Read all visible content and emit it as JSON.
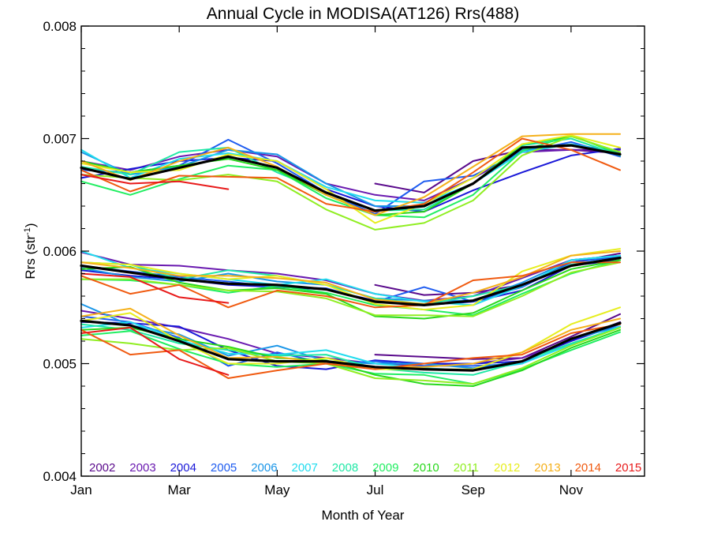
{
  "chart_data": {
    "type": "line",
    "title": "Annual Cycle in MODISA(AT126) Rrs(488)",
    "xlabel": "Month of Year",
    "ylabel_main": "Rrs (str",
    "ylabel_sup": "-1",
    "ylabel_close": ")",
    "xlim": [
      1,
      12.5
    ],
    "ylim": [
      0.004,
      0.008
    ],
    "x_ticks": [
      {
        "value": 1,
        "label": "Jan"
      },
      {
        "value": 3,
        "label": "Mar"
      },
      {
        "value": 5,
        "label": "May"
      },
      {
        "value": 7,
        "label": "Jul"
      },
      {
        "value": 9,
        "label": "Sep"
      },
      {
        "value": 11,
        "label": "Nov"
      }
    ],
    "y_ticks": [
      {
        "value": 0.004,
        "label": "0.004"
      },
      {
        "value": 0.005,
        "label": "0.005"
      },
      {
        "value": 0.006,
        "label": "0.006"
      },
      {
        "value": 0.007,
        "label": "0.007"
      },
      {
        "value": 0.008,
        "label": "0.008"
      }
    ],
    "grid": false,
    "legend_position": "bottom",
    "months": [
      1,
      2,
      3,
      4,
      5,
      6,
      7,
      8,
      9,
      10,
      11,
      12
    ],
    "series": [
      {
        "name": "2002",
        "color": "#5a0a8c",
        "upper": [
          null,
          null,
          null,
          null,
          null,
          null,
          0.0066,
          0.00652,
          0.0068,
          0.0069,
          0.0069,
          0.00687
        ],
        "middle": [
          null,
          null,
          null,
          null,
          null,
          null,
          0.0057,
          0.00561,
          0.00563,
          0.0057,
          0.0059,
          0.00598
        ],
        "lower": [
          null,
          null,
          null,
          null,
          null,
          null,
          0.00508,
          0.00506,
          0.00504,
          0.00505,
          0.00524,
          0.00544
        ]
      },
      {
        "name": "2003",
        "color": "#6a1ab0",
        "upper": [
          0.0068,
          0.00672,
          0.00684,
          0.0069,
          0.00684,
          0.0066,
          0.0065,
          0.00645,
          0.00665,
          0.00688,
          0.0069,
          0.0069
        ],
        "middle": [
          0.00599,
          0.00588,
          0.00587,
          0.00583,
          0.0058,
          0.00574,
          0.00562,
          0.00556,
          0.0056,
          0.00576,
          0.00592,
          0.00596
        ],
        "lower": [
          0.00547,
          0.0054,
          0.00532,
          0.00522,
          0.00509,
          0.00505,
          0.005,
          0.00498,
          0.005,
          0.00505,
          0.0052,
          0.00537
        ]
      },
      {
        "name": "2004",
        "color": "#1a18d8",
        "upper": [
          0.00665,
          0.00673,
          0.0068,
          0.00683,
          0.0068,
          0.00655,
          0.0064,
          0.00635,
          0.00654,
          0.0067,
          0.00685,
          0.00691
        ],
        "middle": [
          0.00583,
          0.00578,
          0.00575,
          0.0057,
          0.00568,
          0.00566,
          0.00556,
          0.00552,
          0.00555,
          0.00565,
          0.00587,
          0.00592
        ],
        "lower": [
          0.00537,
          0.00536,
          0.00533,
          0.00512,
          0.00498,
          0.00495,
          0.00503,
          0.005,
          0.005,
          0.00502,
          0.0052,
          0.00535
        ]
      },
      {
        "name": "2005",
        "color": "#1e5cf0",
        "upper": [
          0.00672,
          0.0067,
          0.00676,
          0.00699,
          0.00678,
          0.00652,
          0.00633,
          0.00662,
          0.00667,
          0.00688,
          0.00697,
          0.00684
        ],
        "middle": [
          0.00587,
          0.00582,
          0.00577,
          0.00573,
          0.00568,
          0.00567,
          0.00555,
          0.00568,
          0.00555,
          0.00568,
          0.0059,
          0.00595
        ],
        "lower": [
          0.00542,
          0.00537,
          0.00523,
          0.00498,
          0.0051,
          0.005,
          0.00502,
          0.00498,
          0.00498,
          0.005,
          0.00522,
          0.00535
        ]
      },
      {
        "name": "2006",
        "color": "#1a96e8",
        "upper": [
          0.00688,
          0.00668,
          0.00675,
          0.0069,
          0.00686,
          0.0066,
          0.0064,
          0.0064,
          0.0066,
          0.0069,
          0.00695,
          0.00688
        ],
        "middle": [
          0.00585,
          0.00577,
          0.00573,
          0.0058,
          0.00573,
          0.0057,
          0.00558,
          0.00556,
          0.00556,
          0.00572,
          0.00592,
          0.00596
        ],
        "lower": [
          0.00553,
          0.00534,
          0.00526,
          0.00507,
          0.00516,
          0.00502,
          0.005,
          0.005,
          0.00496,
          0.00502,
          0.00522,
          0.00533
        ]
      },
      {
        "name": "2007",
        "color": "#22dcee",
        "upper": [
          0.0069,
          0.00665,
          0.00682,
          0.00687,
          0.0068,
          0.00657,
          0.00645,
          0.00643,
          0.0066,
          0.00688,
          0.00695,
          0.00686
        ],
        "middle": [
          0.006,
          0.00585,
          0.0058,
          0.00575,
          0.0057,
          0.00575,
          0.00562,
          0.00555,
          0.00552,
          0.00569,
          0.00592,
          0.00596
        ],
        "lower": [
          0.00532,
          0.00537,
          0.00521,
          0.00509,
          0.00508,
          0.00512,
          0.005,
          0.00496,
          0.00494,
          0.005,
          0.00517,
          0.00533
        ]
      },
      {
        "name": "2008",
        "color": "#20e8a6",
        "upper": [
          0.00675,
          0.00668,
          0.00688,
          0.00692,
          0.0067,
          0.00652,
          0.00636,
          0.00637,
          0.0066,
          0.00694,
          0.007,
          0.00685
        ],
        "middle": [
          0.0059,
          0.00588,
          0.00575,
          0.00583,
          0.00578,
          0.0057,
          0.00558,
          0.00553,
          0.0056,
          0.0057,
          0.00588,
          0.00594
        ],
        "lower": [
          0.00535,
          0.0053,
          0.00518,
          0.00512,
          0.00507,
          0.00508,
          0.00496,
          0.00492,
          0.0049,
          0.00502,
          0.00518,
          0.00532
        ]
      },
      {
        "name": "2009",
        "color": "#22ee62",
        "upper": [
          0.00662,
          0.0065,
          0.00664,
          0.00676,
          0.00672,
          0.00647,
          0.00632,
          0.0063,
          0.0065,
          0.00689,
          0.00703,
          0.00686
        ],
        "middle": [
          0.00575,
          0.00574,
          0.0057,
          0.00563,
          0.00569,
          0.00563,
          0.00552,
          0.00548,
          0.00543,
          0.00562,
          0.0058,
          0.00592
        ],
        "lower": [
          0.00525,
          0.00529,
          0.00513,
          0.005,
          0.00497,
          0.005,
          0.00491,
          0.0049,
          0.00482,
          0.00495,
          0.00512,
          0.00528
        ]
      },
      {
        "name": "2010",
        "color": "#28d81c",
        "upper": [
          0.0068,
          0.0067,
          0.00676,
          0.00682,
          0.00672,
          0.0065,
          0.00632,
          0.00635,
          0.0066,
          0.00695,
          0.00702,
          0.00688
        ],
        "middle": [
          0.00584,
          0.00586,
          0.00572,
          0.00565,
          0.00567,
          0.00562,
          0.00542,
          0.0054,
          0.00545,
          0.00565,
          0.00584,
          0.00592
        ],
        "lower": [
          0.0053,
          0.00532,
          0.00522,
          0.00515,
          0.00505,
          0.00503,
          0.0049,
          0.00482,
          0.0048,
          0.00494,
          0.00514,
          0.0053
        ]
      },
      {
        "name": "2011",
        "color": "#90ee22",
        "upper": [
          0.00668,
          0.00665,
          0.00663,
          0.00668,
          0.00662,
          0.00637,
          0.00619,
          0.00625,
          0.00645,
          0.00685,
          0.00702,
          0.00688
        ],
        "middle": [
          0.00575,
          0.00575,
          0.0057,
          0.00565,
          0.00564,
          0.00558,
          0.00543,
          0.00543,
          0.00542,
          0.0056,
          0.00581,
          0.0059
        ],
        "lower": [
          0.00522,
          0.00518,
          0.00512,
          0.00514,
          0.00502,
          0.005,
          0.00487,
          0.00485,
          0.00482,
          0.00496,
          0.00516,
          0.00532
        ]
      },
      {
        "name": "2012",
        "color": "#e6ee1e",
        "upper": [
          0.00678,
          0.0067,
          0.00672,
          0.00686,
          0.0068,
          0.00655,
          0.00625,
          0.00642,
          0.00665,
          0.00695,
          0.00703,
          0.00692
        ],
        "middle": [
          0.0059,
          0.00588,
          0.0058,
          0.00575,
          0.00578,
          0.0057,
          0.00553,
          0.00548,
          0.00552,
          0.00582,
          0.00596,
          0.00602
        ],
        "lower": [
          0.00538,
          0.00545,
          0.0052,
          0.005,
          0.005,
          0.00505,
          0.00495,
          0.00495,
          0.00495,
          0.0051,
          0.00535,
          0.0055
        ]
      },
      {
        "name": "2013",
        "color": "#f5b01a",
        "upper": [
          0.0068,
          0.00663,
          0.0068,
          0.00692,
          0.00675,
          0.0065,
          0.00632,
          0.00648,
          0.00675,
          0.00702,
          0.00704,
          0.00704
        ],
        "middle": [
          0.0059,
          0.00585,
          0.00578,
          0.00578,
          0.00576,
          0.00572,
          0.00557,
          0.00553,
          0.00563,
          0.00577,
          0.00596,
          0.006
        ],
        "lower": [
          0.00542,
          0.00549,
          0.00525,
          0.00505,
          0.00506,
          0.005,
          0.00497,
          0.00497,
          0.005,
          0.0051,
          0.0053,
          0.0054
        ]
      },
      {
        "name": "2014",
        "color": "#f05a10",
        "upper": [
          0.00672,
          0.00653,
          0.00667,
          0.00666,
          0.00665,
          0.00642,
          0.00635,
          0.00642,
          0.0067,
          0.007,
          0.0069,
          0.00672
        ],
        "middle": [
          0.00578,
          0.00562,
          0.0057,
          0.0055,
          0.00565,
          0.0056,
          0.0055,
          0.00552,
          0.00574,
          0.00578,
          0.0059,
          0.0059
        ],
        "lower": [
          0.0053,
          0.00508,
          0.00512,
          0.00487,
          0.00494,
          0.005,
          0.00495,
          0.005,
          0.00505,
          0.00508,
          0.00527,
          0.00535
        ]
      },
      {
        "name": "2015",
        "color": "#e81a1a",
        "upper": [
          0.00668,
          0.0066,
          0.00662,
          0.00655,
          null,
          null,
          null,
          null,
          null,
          null,
          null,
          null
        ],
        "middle": [
          0.0058,
          0.00577,
          0.00559,
          0.00554,
          null,
          null,
          null,
          null,
          null,
          null,
          null,
          null
        ],
        "lower": [
          0.00527,
          0.00532,
          0.00504,
          0.0049,
          null,
          null,
          null,
          null,
          null,
          null,
          null,
          null
        ]
      }
    ],
    "mean": {
      "color": "#000000",
      "upper": [
        0.00674,
        0.00664,
        0.00674,
        0.00684,
        0.00674,
        0.00652,
        0.00636,
        0.0064,
        0.0066,
        0.00692,
        0.00694,
        0.00686
      ],
      "middle": [
        0.00587,
        0.00581,
        0.00575,
        0.00571,
        0.0057,
        0.00566,
        0.00555,
        0.00552,
        0.00556,
        0.0057,
        0.00587,
        0.00594
      ],
      "lower": [
        0.00538,
        0.00534,
        0.0052,
        0.00504,
        0.00502,
        0.00502,
        0.00497,
        0.00495,
        0.00494,
        0.00502,
        0.00522,
        0.00536
      ]
    }
  }
}
